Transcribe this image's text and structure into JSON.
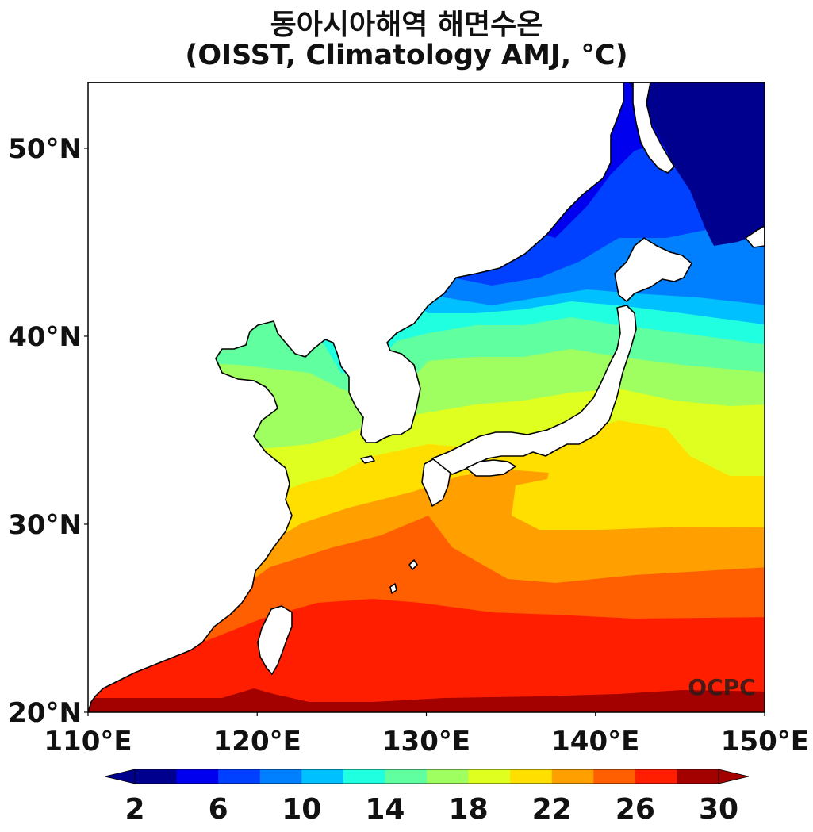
{
  "title_line1": "동아시아해역 해면수온",
  "title_line2": "(OISST, Climatology AMJ, °C)",
  "watermark": "OCPC",
  "map": {
    "lon_range": [
      110,
      150
    ],
    "lat_range": [
      20,
      53.5
    ],
    "lon_ticks": [
      "110°E",
      "120°E",
      "130°E",
      "140°E",
      "150°E"
    ],
    "lat_ticks": [
      "20°N",
      "30°N",
      "40°N",
      "50°N"
    ],
    "land_color": "#ffffff",
    "coast_color": "#000000"
  },
  "colorbar": {
    "levels": [
      2,
      4,
      6,
      8,
      10,
      12,
      14,
      16,
      18,
      20,
      22,
      24,
      26,
      28,
      30
    ],
    "colors": [
      "#00008f",
      "#0000ef",
      "#0040ff",
      "#0080ff",
      "#00c0ff",
      "#20ffdf",
      "#60ff9f",
      "#a0ff60",
      "#dfff20",
      "#ffdf00",
      "#ff9f00",
      "#ff5f00",
      "#ff1f00",
      "#a30000"
    ],
    "under_color": "#00008f",
    "over_color": "#a30000",
    "tick_labels": [
      "2",
      "6",
      "10",
      "14",
      "18",
      "22",
      "26",
      "30"
    ]
  }
}
